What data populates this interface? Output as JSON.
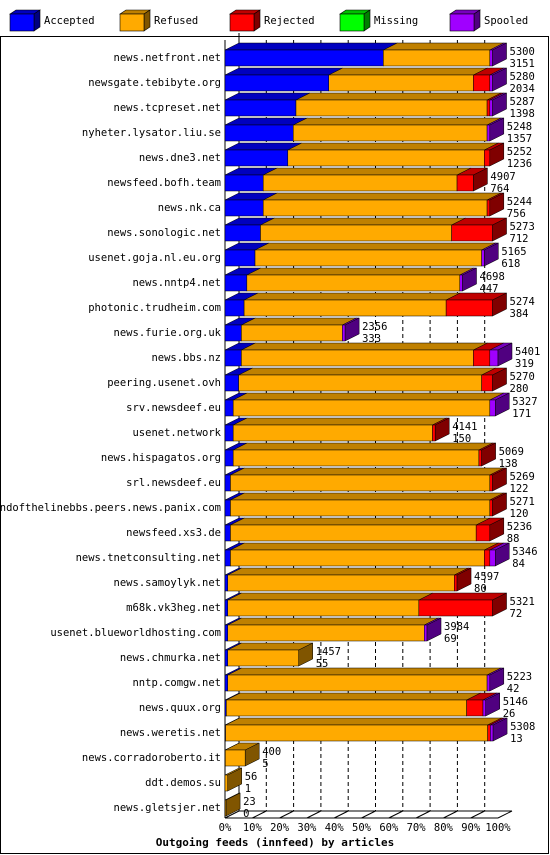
{
  "chart_data": {
    "type": "bar3d-stacked",
    "axis_title": "Outgoing feeds (innfeed) by articles",
    "categories": [
      "news.netfront.net",
      "newsgate.tebibyte.org",
      "news.tcpreset.net",
      "nyheter.lysator.liu.se",
      "news.dne3.net",
      "newsfeed.bofh.team",
      "news.nk.ca",
      "news.sonologic.net",
      "usenet.goja.nl.eu.org",
      "news.nntp4.net",
      "photonic.trudheim.com",
      "news.furie.org.uk",
      "news.bbs.nz",
      "peering.usenet.ovh",
      "srv.newsdeef.eu",
      "usenet.network",
      "news.hispagatos.org",
      "srl.newsdeef.eu",
      "endofthelinebbs.peers.news.panix.com",
      "newsfeed.xs3.de",
      "news.tnetconsulting.net",
      "news.samoylyk.net",
      "m68k.vk3heg.net",
      "usenet.blueworldhosting.com",
      "news.chmurka.net",
      "nntp.comgw.net",
      "news.quux.org",
      "news.weretis.net",
      "news.corradoroberto.it",
      "ddt.demos.su",
      "news.gletsjer.net"
    ],
    "offered": [
      5300,
      5280,
      5287,
      5248,
      5252,
      4907,
      5244,
      5273,
      5165,
      4698,
      5274,
      2356,
      5401,
      5270,
      5327,
      4141,
      5069,
      5269,
      5271,
      5236,
      5346,
      4597,
      5321,
      3984,
      1457,
      5223,
      5146,
      5308,
      400,
      56,
      23
    ],
    "accepted": [
      3151,
      2034,
      1398,
      1357,
      1236,
      764,
      756,
      712,
      618,
      447,
      384,
      333,
      319,
      280,
      171,
      150,
      138,
      122,
      120,
      88,
      84,
      80,
      72,
      69,
      55,
      42,
      26,
      13,
      5,
      1,
      0
    ],
    "series": [
      {
        "name": "Accepted",
        "color": "#0000ff",
        "values": [
          58,
          38,
          26,
          25,
          23,
          14,
          14,
          13,
          11,
          8,
          7,
          6,
          6,
          5,
          3,
          3,
          3,
          2,
          2,
          2,
          2,
          1,
          1,
          1,
          1,
          1,
          0.5,
          0.2,
          0.1,
          0,
          0
        ]
      },
      {
        "name": "Refused",
        "color": "#ffaa00",
        "values": [
          39,
          53,
          70,
          71,
          72,
          71,
          82,
          70,
          83,
          78,
          74,
          37,
          85,
          89,
          94,
          73,
          90,
          95,
          95,
          90,
          93,
          83,
          70,
          72,
          26,
          95,
          88,
          96,
          7.3,
          1,
          0.4
        ]
      },
      {
        "name": "Rejected",
        "color": "#ff0000",
        "values": [
          0,
          6,
          1,
          0,
          2,
          6,
          1,
          15,
          0,
          0,
          17,
          0,
          6,
          4,
          0,
          1,
          1,
          1,
          1,
          5,
          2,
          1,
          27,
          0,
          0,
          0,
          6,
          1,
          0,
          0,
          0
        ]
      },
      {
        "name": "Missing",
        "color": "#00ff00",
        "values": [
          0,
          0,
          0,
          0,
          0,
          0,
          0,
          0,
          0,
          0,
          0,
          0,
          0,
          0,
          0,
          0,
          0,
          0,
          0,
          0,
          0,
          0,
          0,
          0,
          0,
          0,
          0,
          0,
          0,
          0,
          0
        ]
      },
      {
        "name": "Spooled",
        "color": "#a000ff",
        "values": [
          1,
          1,
          1,
          1,
          0,
          0,
          0,
          0,
          1,
          1,
          0,
          1,
          3,
          0,
          2,
          0,
          0,
          0,
          0,
          0,
          2,
          0,
          0,
          1,
          0,
          1,
          1,
          1,
          0,
          0,
          0
        ]
      }
    ],
    "xlim": [
      0,
      100
    ],
    "xticks": [
      {
        "value": 0,
        "label": "0%"
      },
      {
        "value": 10,
        "label": "10%"
      },
      {
        "value": 20,
        "label": "20%"
      },
      {
        "value": 30,
        "label": "30%"
      },
      {
        "value": 40,
        "label": "40%"
      },
      {
        "value": 50,
        "label": "50%"
      },
      {
        "value": 60,
        "label": "60%"
      },
      {
        "value": 70,
        "label": "70%"
      },
      {
        "value": 80,
        "label": "80%"
      },
      {
        "value": 90,
        "label": "90%"
      },
      {
        "value": 100,
        "label": "100%"
      }
    ],
    "grid": true
  }
}
